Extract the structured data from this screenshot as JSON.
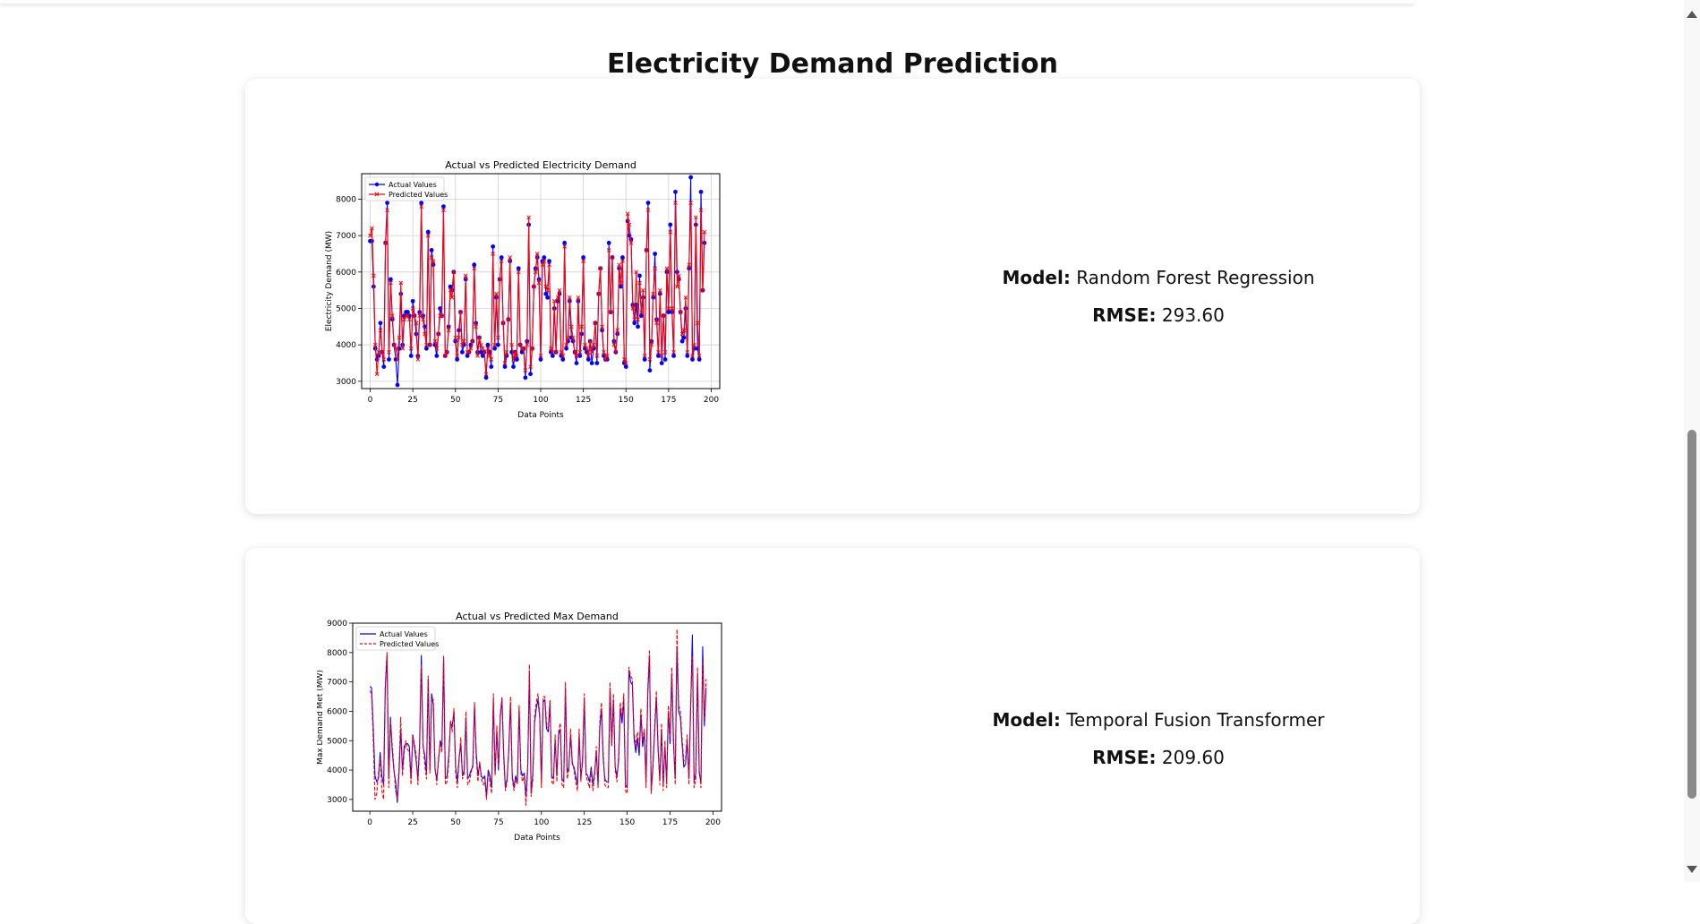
{
  "page": {
    "title": "Electricity Demand Prediction"
  },
  "cards": [
    {
      "model_label": "Model:",
      "model_value": "Random Forest Regression",
      "rmse_label": "RMSE:",
      "rmse_value": "293.60"
    },
    {
      "model_label": "Model:",
      "model_value": "Temporal Fusion Transformer",
      "rmse_label": "RMSE:",
      "rmse_value": "209.60"
    }
  ],
  "colors": {
    "actual": "#0000ff",
    "predicted": "#ff0000"
  },
  "chart_data": [
    {
      "type": "line",
      "title": "Actual vs Predicted Electricity Demand",
      "xlabel": "Data Points",
      "ylabel": "Electricity Demand (MW)",
      "xlim": [
        -5,
        205
      ],
      "ylim": [
        2800,
        8700
      ],
      "xticks": [
        "0",
        "25",
        "50",
        "75",
        "100",
        "125",
        "150",
        "175",
        "200"
      ],
      "yticks": [
        "3000",
        "4000",
        "5000",
        "6000",
        "7000",
        "8000"
      ],
      "grid": true,
      "legend": "top-left",
      "markers": true,
      "series": [
        {
          "name": "Actual Values",
          "values": [
            6850,
            6850,
            5600,
            3900,
            3600,
            3700,
            4600,
            3800,
            3400,
            6800,
            7900,
            3600,
            5800,
            4700,
            4000,
            3600,
            2900,
            3900,
            5400,
            4000,
            4800,
            4900,
            4900,
            4800,
            3700,
            5200,
            4800,
            4300,
            3700,
            4900,
            7900,
            4800,
            4500,
            3900,
            7100,
            4000,
            6600,
            6200,
            4000,
            3700,
            4300,
            5000,
            4800,
            7800,
            3700,
            3800,
            4500,
            5600,
            5500,
            6000,
            4100,
            3600,
            4400,
            4900,
            3800,
            4000,
            5800,
            3700,
            3800,
            4000,
            4100,
            6200,
            4600,
            3800,
            4200,
            3800,
            3700,
            3800,
            3100,
            4000,
            3800,
            3400,
            6700,
            3900,
            5300,
            4000,
            5800,
            6400,
            4600,
            3400,
            3700,
            4700,
            6300,
            3800,
            3400,
            3800,
            3600,
            6100,
            4000,
            3800,
            3900,
            3100,
            4100,
            7300,
            3200,
            3900,
            5600,
            6100,
            6400,
            5800,
            3600,
            6300,
            6400,
            5400,
            5300,
            6300,
            3800,
            3700,
            5000,
            3800,
            5200,
            5400,
            3700,
            3600,
            6800,
            3900,
            4100,
            5200,
            4200,
            4100,
            3800,
            3500,
            5200,
            3700,
            4300,
            6400,
            3900,
            3800,
            3600,
            4100,
            3500,
            3900,
            4600,
            3500,
            5400,
            6100,
            4400,
            3700,
            3600,
            3600,
            6800,
            4900,
            6400,
            4100,
            3800,
            4300,
            6100,
            5600,
            6400,
            3500,
            3400,
            7400,
            7000,
            6900,
            5100,
            4600,
            5100,
            4500,
            5900,
            4800,
            5300,
            3600,
            6600,
            7900,
            3300,
            4100,
            5300,
            6500,
            4700,
            3700,
            5400,
            3500,
            4800,
            3600,
            6000,
            4900,
            7300,
            4900,
            3700,
            8200,
            6000,
            5800,
            4900,
            4100,
            4200,
            5000,
            3700,
            6100,
            8600,
            3600,
            3900,
            7300,
            3900,
            3600,
            8200,
            5500,
            6800
          ]
        },
        {
          "name": "Predicted Values",
          "values": [
            7000,
            7200,
            5900,
            4000,
            3200,
            3800,
            4400,
            3800,
            3600,
            6800,
            7700,
            3800,
            5700,
            4800,
            4000,
            3900,
            3600,
            4200,
            5700,
            3900,
            4700,
            4800,
            4800,
            4700,
            3900,
            5000,
            4800,
            4600,
            3600,
            4800,
            7800,
            4700,
            4300,
            4000,
            7000,
            4000,
            6400,
            6300,
            4100,
            3900,
            4300,
            4800,
            4800,
            7700,
            3700,
            3800,
            4400,
            5500,
            5300,
            6000,
            4200,
            3700,
            4200,
            4900,
            4000,
            4100,
            5900,
            3800,
            3800,
            3900,
            4100,
            6100,
            4500,
            3700,
            4200,
            4000,
            3900,
            3800,
            3200,
            3900,
            3700,
            3600,
            6500,
            4000,
            5400,
            4200,
            5800,
            6300,
            4600,
            3500,
            3800,
            4700,
            6400,
            4000,
            3600,
            3800,
            3700,
            6000,
            4000,
            3900,
            3900,
            3300,
            4000,
            7500,
            3400,
            3900,
            5600,
            6000,
            6500,
            5700,
            3700,
            6200,
            6300,
            5600,
            5500,
            6200,
            3900,
            3800,
            5200,
            3800,
            5300,
            5500,
            3800,
            3700,
            6700,
            4000,
            4200,
            5300,
            4500,
            4200,
            3800,
            3700,
            5300,
            3800,
            4500,
            6300,
            4000,
            3900,
            3700,
            4100,
            3800,
            4000,
            4600,
            3700,
            5400,
            6100,
            4500,
            3800,
            3600,
            3700,
            6600,
            4900,
            6400,
            4000,
            3800,
            4400,
            6200,
            5700,
            6300,
            3600,
            3500,
            7600,
            7300,
            6800,
            5000,
            4700,
            6000,
            4700,
            5700,
            4900,
            5500,
            3700,
            6600,
            7700,
            3600,
            4000,
            5400,
            6100,
            4600,
            3800,
            5500,
            3700,
            4800,
            3800,
            6100,
            5000,
            7100,
            5000,
            3800,
            7900,
            5600,
            5900,
            4900,
            4300,
            4400,
            5300,
            3800,
            6200,
            7900,
            3700,
            4000,
            7500,
            4600,
            3700,
            7700,
            5500,
            7100
          ]
        }
      ]
    },
    {
      "type": "line",
      "title": "Actual vs Predicted Max Demand",
      "xlabel": "Data Points",
      "ylabel": "Max Demand Met (MW)",
      "xlim": [
        -10,
        205
      ],
      "ylim": [
        2600,
        9000
      ],
      "xticks": [
        "0",
        "25",
        "50",
        "75",
        "100",
        "125",
        "150",
        "175",
        "200"
      ],
      "yticks": [
        "3000",
        "4000",
        "5000",
        "6000",
        "7000",
        "8000",
        "9000"
      ],
      "grid": false,
      "legend": "top-left",
      "markers": false,
      "series": [
        {
          "name": "Actual Values",
          "values": [
            6850,
            6800,
            5400,
            3800,
            3600,
            3700,
            4600,
            3800,
            3500,
            6800,
            7900,
            3700,
            5800,
            4700,
            4000,
            3600,
            2900,
            3900,
            5400,
            4000,
            4800,
            4900,
            4900,
            4800,
            3700,
            5200,
            4800,
            4300,
            3700,
            4900,
            7900,
            4800,
            4500,
            3900,
            7100,
            4000,
            6600,
            6200,
            4000,
            3700,
            4300,
            5000,
            4800,
            7800,
            3700,
            3800,
            4500,
            5600,
            5500,
            6000,
            4100,
            3600,
            4400,
            4900,
            3800,
            4000,
            5800,
            3700,
            3800,
            4000,
            4100,
            6200,
            4600,
            3800,
            4200,
            3800,
            3700,
            3800,
            3100,
            4000,
            3800,
            3400,
            6400,
            3900,
            5300,
            4000,
            5800,
            6400,
            4600,
            3400,
            3700,
            4700,
            6300,
            3800,
            3400,
            3800,
            3600,
            6100,
            4000,
            3800,
            3900,
            3100,
            4100,
            7300,
            3200,
            3900,
            5600,
            6100,
            6400,
            5800,
            3600,
            6300,
            6400,
            5400,
            5300,
            6300,
            3800,
            3700,
            5000,
            3800,
            5200,
            5400,
            3700,
            3600,
            6800,
            3900,
            4100,
            5200,
            4200,
            4100,
            3800,
            3500,
            5200,
            3700,
            4300,
            6400,
            3900,
            3800,
            3600,
            4100,
            3500,
            3900,
            4600,
            3500,
            5400,
            6100,
            4400,
            3700,
            3600,
            3600,
            6800,
            4900,
            6400,
            4100,
            3800,
            4300,
            6100,
            5600,
            6400,
            3500,
            3400,
            7400,
            7000,
            6900,
            5100,
            4600,
            5100,
            4500,
            5900,
            4800,
            5300,
            3600,
            6600,
            7900,
            3300,
            4100,
            5300,
            6500,
            4700,
            3700,
            5400,
            3500,
            4800,
            3600,
            6000,
            4900,
            7300,
            4900,
            3700,
            8200,
            6000,
            5800,
            4900,
            4100,
            4200,
            5000,
            3700,
            6100,
            8600,
            3600,
            3900,
            7300,
            3900,
            3600,
            8200,
            5500,
            6800
          ]
        },
        {
          "name": "Predicted Values",
          "values": [
            6700,
            6600,
            5000,
            3000,
            3200,
            3900,
            4400,
            3300,
            3000,
            7000,
            8000,
            3400,
            5700,
            4900,
            4100,
            3300,
            3000,
            4100,
            5800,
            3800,
            4600,
            5000,
            4700,
            4600,
            3500,
            5100,
            4900,
            4500,
            3500,
            4700,
            7600,
            4900,
            4200,
            3700,
            7200,
            3900,
            6400,
            6400,
            4100,
            3500,
            4400,
            4900,
            4600,
            7900,
            3500,
            3600,
            4300,
            5700,
            5300,
            6100,
            3900,
            3400,
            4300,
            5100,
            3700,
            3900,
            6000,
            3500,
            3600,
            3900,
            4200,
            6300,
            4400,
            3600,
            4300,
            3700,
            3500,
            3600,
            3000,
            3900,
            3600,
            3200,
            6600,
            3800,
            5500,
            4100,
            5900,
            6500,
            4400,
            3300,
            3600,
            4800,
            6500,
            3700,
            3300,
            3700,
            3500,
            6200,
            3900,
            3600,
            3800,
            2800,
            4000,
            7600,
            3100,
            3700,
            5800,
            6300,
            6600,
            5900,
            3400,
            6500,
            6500,
            5600,
            5400,
            6400,
            3600,
            3500,
            5200,
            3600,
            5300,
            5600,
            3500,
            3400,
            7000,
            3700,
            4000,
            5400,
            4300,
            4000,
            3600,
            3300,
            5400,
            3600,
            4500,
            6600,
            3800,
            3600,
            3400,
            4000,
            3300,
            3800,
            4800,
            3400,
            5600,
            6300,
            4600,
            3500,
            3400,
            3400,
            7000,
            4800,
            6600,
            4000,
            3600,
            4500,
            6300,
            5800,
            6600,
            3300,
            3200,
            7500,
            7200,
            7100,
            5300,
            4800,
            5300,
            4700,
            6100,
            5000,
            5400,
            3400,
            6800,
            8100,
            3200,
            4200,
            5500,
            6700,
            4900,
            3500,
            5600,
            3300,
            5000,
            3400,
            6200,
            5100,
            7500,
            5100,
            3500,
            8800,
            6200,
            6000,
            5100,
            4300,
            4400,
            5200,
            3500,
            6300,
            7900,
            3400,
            3700,
            7500,
            4000,
            3400,
            7700,
            5700,
            7100
          ]
        }
      ]
    }
  ]
}
